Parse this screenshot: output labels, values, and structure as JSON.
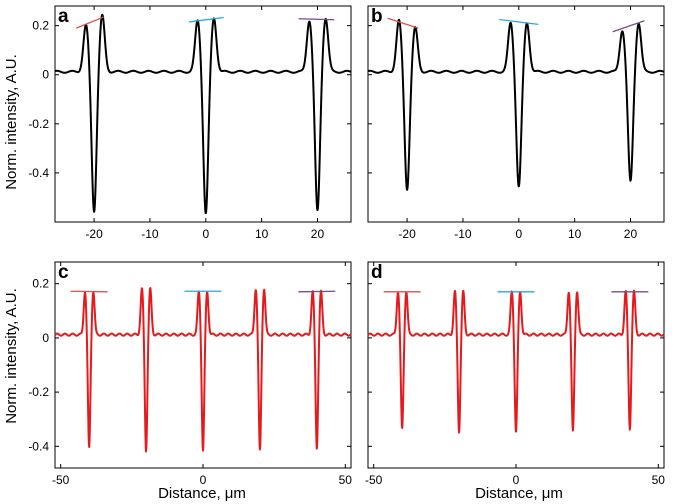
{
  "figure": {
    "ylabel_top": "Norm. intensity, A.U.",
    "ylabel_bottom": "Norm. intensity, A.U.",
    "xlabel_left": "Distance, μm",
    "xlabel_right": "Distance, μm"
  },
  "chart_data": [
    {
      "panel": "a",
      "type": "line",
      "xlim": [
        -27,
        26
      ],
      "ylim": [
        -0.6,
        0.28
      ],
      "xticks": [
        -20,
        -10,
        0,
        10,
        20
      ],
      "yticks": [
        0.2,
        0,
        -0.2,
        -0.4
      ],
      "xticklabels": [
        "-20",
        "-10",
        "0",
        "10",
        "20"
      ],
      "yticklabels": [
        "0.2",
        "0",
        "-0.2",
        "-0.4"
      ],
      "series": [
        {
          "color": "#000000",
          "units": [
            {
              "center": -20,
              "left_peak": 0.19,
              "right_peak": 0.23,
              "dip": -0.57
            },
            {
              "center": 0,
              "left_peak": 0.21,
              "right_peak": 0.22,
              "dip": -0.58
            },
            {
              "center": 20,
              "left_peak": 0.21,
              "right_peak": 0.22,
              "dip": -0.57
            }
          ]
        }
      ],
      "annotations": [
        {
          "x1": -23.2,
          "y1": 0.19,
          "x2": -18.3,
          "y2": 0.235,
          "color": "#d9534f"
        },
        {
          "x1": -3.0,
          "y1": 0.215,
          "x2": 3.2,
          "y2": 0.233,
          "color": "#2aa9d8"
        },
        {
          "x1": 16.6,
          "y1": 0.228,
          "x2": 23.0,
          "y2": 0.224,
          "color": "#7a4a8c"
        }
      ]
    },
    {
      "panel": "b",
      "type": "line",
      "xlim": [
        -27,
        26
      ],
      "ylim": [
        -0.6,
        0.28
      ],
      "xticks": [
        -20,
        -10,
        0,
        10,
        20
      ],
      "yticks": [
        0.2,
        0,
        -0.2,
        -0.4
      ],
      "xticklabels": [
        "-20",
        "-10",
        "0",
        "10",
        "20"
      ],
      "yticklabels": [],
      "series": [
        {
          "color": "#000000",
          "units": [
            {
              "center": -20,
              "left_peak": 0.21,
              "right_peak": 0.18,
              "dip": -0.48
            },
            {
              "center": 0,
              "left_peak": 0.2,
              "right_peak": 0.2,
              "dip": -0.47
            },
            {
              "center": 20,
              "left_peak": 0.17,
              "right_peak": 0.2,
              "dip": -0.45
            }
          ]
        }
      ],
      "annotations": [
        {
          "x1": -23.5,
          "y1": 0.23,
          "x2": -18.0,
          "y2": 0.19,
          "color": "#d9534f"
        },
        {
          "x1": -3.5,
          "y1": 0.225,
          "x2": 3.5,
          "y2": 0.205,
          "color": "#2aa9d8"
        },
        {
          "x1": 16.8,
          "y1": 0.175,
          "x2": 22.5,
          "y2": 0.22,
          "color": "#7a4a8c"
        }
      ]
    },
    {
      "panel": "c",
      "type": "line",
      "xlim": [
        -52,
        52
      ],
      "ylim": [
        -0.48,
        0.28
      ],
      "xticks": [
        -50,
        0,
        50
      ],
      "yticks": [
        0.2,
        0,
        -0.2,
        -0.4
      ],
      "xticklabels": [
        "-50",
        "0",
        "50"
      ],
      "yticklabels": [
        "0.2",
        "0",
        "-0.2",
        "-0.4"
      ],
      "series": [
        {
          "color": "#e41a1c",
          "units": [
            {
              "center": -40,
              "left_peak": 0.16,
              "right_peak": 0.16,
              "dip": -0.42
            },
            {
              "center": -20,
              "left_peak": 0.17,
              "right_peak": 0.17,
              "dip": -0.43
            },
            {
              "center": 0,
              "left_peak": 0.16,
              "right_peak": 0.16,
              "dip": -0.43
            },
            {
              "center": 20,
              "left_peak": 0.17,
              "right_peak": 0.17,
              "dip": -0.43
            },
            {
              "center": 40,
              "left_peak": 0.16,
              "right_peak": 0.16,
              "dip": -0.42
            }
          ]
        }
      ],
      "annotations": [
        {
          "x1": -46.5,
          "y1": 0.172,
          "x2": -33.5,
          "y2": 0.17,
          "color": "#d9534f"
        },
        {
          "x1": -6.5,
          "y1": 0.172,
          "x2": 6.5,
          "y2": 0.172,
          "color": "#2aa9d8"
        },
        {
          "x1": 33.5,
          "y1": 0.17,
          "x2": 46.5,
          "y2": 0.172,
          "color": "#7a4a8c"
        }
      ]
    },
    {
      "panel": "d",
      "type": "line",
      "xlim": [
        -52,
        52
      ],
      "ylim": [
        -0.48,
        0.28
      ],
      "xticks": [
        -50,
        0,
        50
      ],
      "yticks": [
        0.2,
        0,
        -0.2,
        -0.4
      ],
      "xticklabels": [
        "-50",
        "0",
        "50"
      ],
      "yticklabels": [],
      "series": [
        {
          "color": "#e41a1c",
          "units": [
            {
              "center": -40,
              "left_peak": 0.16,
              "right_peak": 0.16,
              "dip": -0.35
            },
            {
              "center": -20,
              "left_peak": 0.16,
              "right_peak": 0.16,
              "dip": -0.36
            },
            {
              "center": 0,
              "left_peak": 0.16,
              "right_peak": 0.16,
              "dip": -0.36
            },
            {
              "center": 20,
              "left_peak": 0.16,
              "right_peak": 0.16,
              "dip": -0.36
            },
            {
              "center": 40,
              "left_peak": 0.16,
              "right_peak": 0.16,
              "dip": -0.35
            }
          ]
        }
      ],
      "annotations": [
        {
          "x1": -46.5,
          "y1": 0.17,
          "x2": -33.5,
          "y2": 0.17,
          "color": "#d9534f"
        },
        {
          "x1": -6.5,
          "y1": 0.17,
          "x2": 6.5,
          "y2": 0.17,
          "color": "#2aa9d8"
        },
        {
          "x1": 33.5,
          "y1": 0.17,
          "x2": 46.5,
          "y2": 0.17,
          "color": "#7a4a8c"
        }
      ]
    }
  ]
}
